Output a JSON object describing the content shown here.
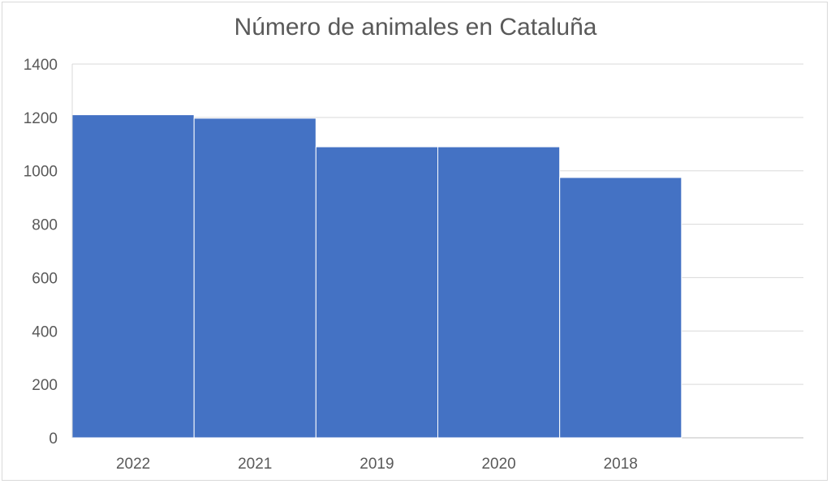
{
  "chart_data": {
    "type": "bar",
    "title": "Número de animales en Cataluña",
    "categories": [
      "2022",
      "2021",
      "2019",
      "2020",
      "2018"
    ],
    "values": [
      1210,
      1197,
      1090,
      1090,
      975
    ],
    "xlabel": "",
    "ylabel": "",
    "ylim": [
      0,
      1400
    ],
    "yticks": [
      "0",
      "200",
      "400",
      "600",
      "800",
      "1000",
      "1200",
      "1400"
    ],
    "grid": true,
    "legend": "none",
    "bar_color": "#4472c4",
    "bar_edge_color": "#ffffff"
  }
}
